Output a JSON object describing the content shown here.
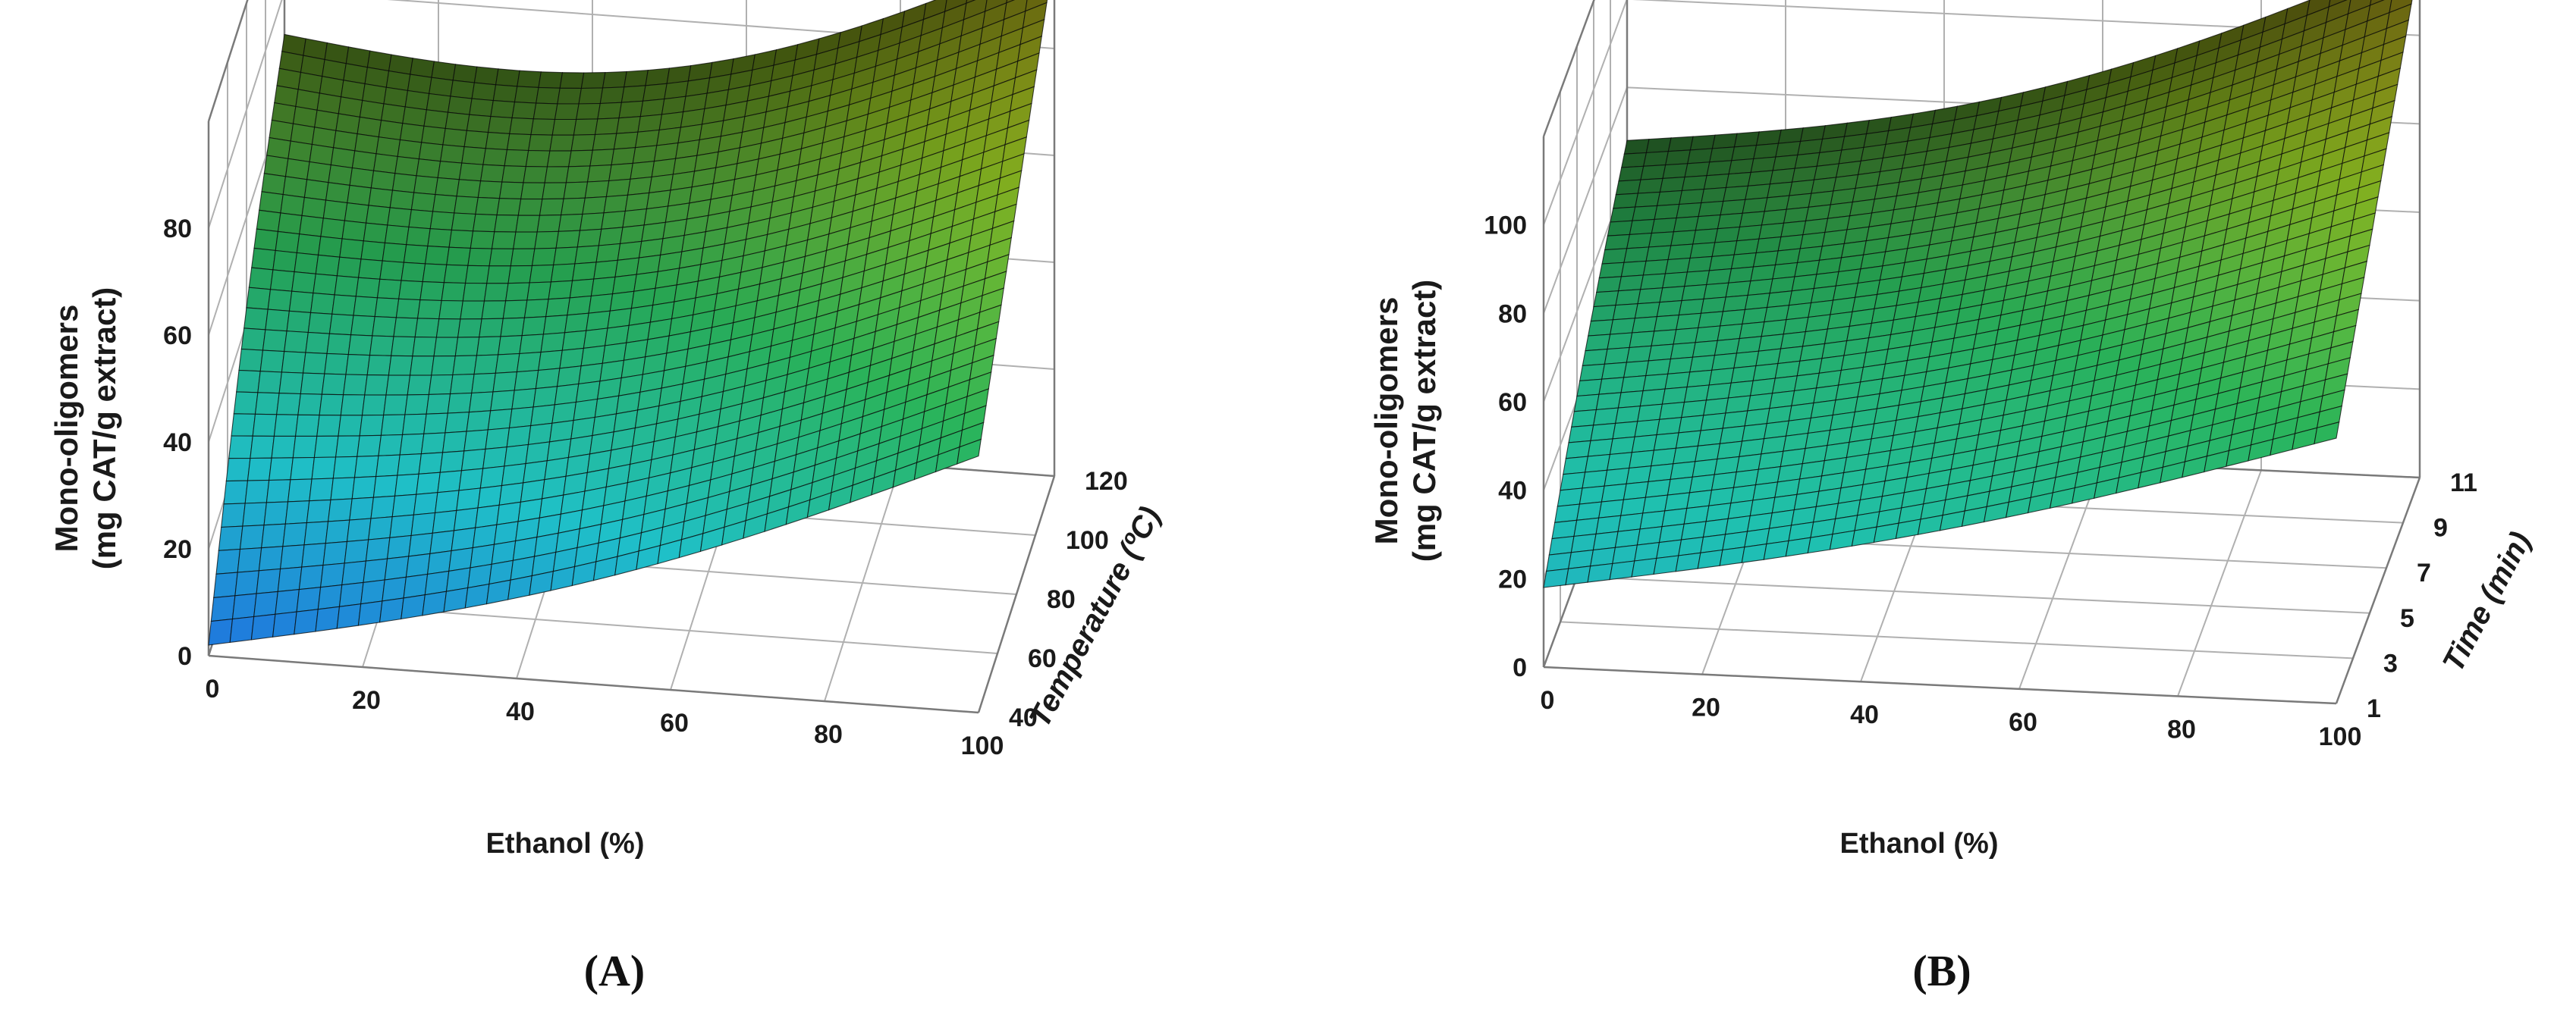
{
  "chart_data": [
    {
      "type": "surface3d",
      "panel_label": "(A)",
      "zlabel_line1": "Mono-oligomers",
      "zlabel_line2": "(mg CAT/g extract)",
      "xlabel": "Ethanol (%)",
      "ylabel": "Temperature (ºC)",
      "x_ticks": [
        "0",
        "20",
        "40",
        "60",
        "80",
        "100"
      ],
      "y_ticks": [
        "40",
        "60",
        "80",
        "100",
        "120"
      ],
      "z_ticks": [
        "0",
        "20",
        "40",
        "60",
        "80"
      ],
      "xlim": [
        0,
        100
      ],
      "ylim": [
        40,
        120
      ],
      "zlim": [
        0,
        100
      ],
      "corners": [
        {
          "x": 0,
          "y": 40,
          "z": 2
        },
        {
          "x": 0,
          "y": 120,
          "z": 72
        },
        {
          "x": 100,
          "y": 40,
          "z": 48
        },
        {
          "x": 100,
          "y": 120,
          "z": 98
        }
      ],
      "colormap": [
        "#1f6fe0",
        "#1fc0c8",
        "#2ab45a",
        "#8fc022",
        "#c8b61a"
      ]
    },
    {
      "type": "surface3d",
      "panel_label": "(B)",
      "zlabel_line1": "Mono-oligomers",
      "zlabel_line2": "(mg CAT/g extract)",
      "xlabel": "Ethanol (%)",
      "ylabel": "Time (min)",
      "x_ticks": [
        "0",
        "20",
        "40",
        "60",
        "80",
        "100"
      ],
      "y_ticks": [
        "1",
        "3",
        "5",
        "7",
        "9",
        "11"
      ],
      "z_ticks": [
        "0",
        "20",
        "40",
        "60",
        "80",
        "100"
      ],
      "xlim": [
        0,
        100
      ],
      "ylim": [
        1,
        11
      ],
      "zlim": [
        0,
        120
      ],
      "corners": [
        {
          "x": 0,
          "y": 1,
          "z": 18
        },
        {
          "x": 0,
          "y": 11,
          "z": 68
        },
        {
          "x": 100,
          "y": 1,
          "z": 60
        },
        {
          "x": 100,
          "y": 11,
          "z": 118
        }
      ],
      "colormap": [
        "#22a8d6",
        "#1fc0b0",
        "#2ab45a",
        "#8fc022",
        "#c8a81a"
      ]
    }
  ]
}
